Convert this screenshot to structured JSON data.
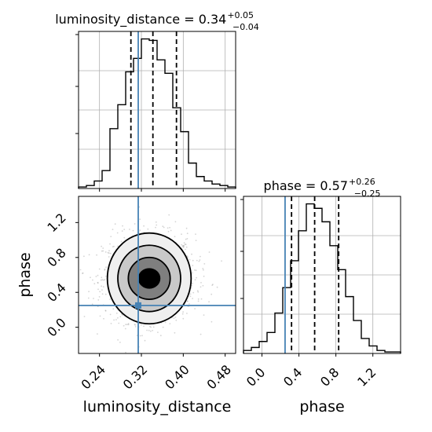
{
  "chart_data": {
    "type": "corner",
    "params": [
      "luminosity_distance",
      "phase"
    ],
    "truths": {
      "luminosity_distance": 0.314,
      "phase": 0.25
    },
    "titles": {
      "luminosity_distance": {
        "prefix": "luminosity_distance = ",
        "median": "0.34",
        "plus": "+0.05",
        "minus": "−0.04"
      },
      "phase": {
        "prefix": "phase = ",
        "median": "0.57",
        "plus": "+0.26",
        "minus": "−0.25"
      }
    },
    "quantiles": {
      "luminosity_distance": [
        0.3,
        0.342,
        0.387
      ],
      "phase": [
        0.32,
        0.57,
        0.83
      ]
    },
    "hist_luminosity_distance": {
      "xlim": [
        0.2,
        0.5
      ],
      "ylim": [
        0,
        1.0
      ],
      "grid": true,
      "bins": [
        0.2,
        0.215,
        0.23,
        0.245,
        0.26,
        0.275,
        0.29,
        0.305,
        0.32,
        0.335,
        0.35,
        0.365,
        0.38,
        0.395,
        0.41,
        0.425,
        0.44,
        0.455,
        0.47,
        0.485,
        0.5
      ],
      "heights": [
        0.01,
        0.02,
        0.05,
        0.12,
        0.4,
        0.56,
        0.78,
        0.87,
        1.0,
        0.99,
        0.86,
        0.77,
        0.54,
        0.38,
        0.17,
        0.08,
        0.05,
        0.03,
        0.02,
        0.01
      ]
    },
    "hist_phase": {
      "xlim": [
        -0.2,
        1.5
      ],
      "ylim": [
        0,
        1.0
      ],
      "grid": true,
      "bins": [
        -0.2,
        -0.115,
        -0.03,
        0.055,
        0.14,
        0.225,
        0.31,
        0.395,
        0.48,
        0.565,
        0.65,
        0.735,
        0.82,
        0.905,
        0.99,
        1.075,
        1.16,
        1.245,
        1.33,
        1.415,
        1.5
      ],
      "heights": [
        0.02,
        0.04,
        0.08,
        0.14,
        0.27,
        0.44,
        0.62,
        0.82,
        1.0,
        0.97,
        0.88,
        0.72,
        0.56,
        0.38,
        0.22,
        0.1,
        0.05,
        0.02,
        0.01,
        0.01
      ]
    },
    "scatter2d": {
      "xlim": [
        0.2,
        0.5
      ],
      "ylim": [
        -0.3,
        1.5
      ],
      "center": [
        0.335,
        0.56
      ],
      "spread": [
        0.035,
        0.2
      ],
      "contours": [
        {
          "rx": 0.02,
          "ry": 0.11,
          "fill": "#000000"
        },
        {
          "rx": 0.04,
          "ry": 0.24,
          "fill": "#7f7f7f"
        },
        {
          "rx": 0.06,
          "ry": 0.38,
          "fill": "#c9c9c9"
        },
        {
          "rx": 0.08,
          "ry": 0.52,
          "fill": "#efefef"
        }
      ]
    },
    "ticks": {
      "luminosity_distance": [
        {
          "v": 0.24,
          "label": "0.24"
        },
        {
          "v": 0.32,
          "label": "0.32"
        },
        {
          "v": 0.4,
          "label": "0.40"
        },
        {
          "v": 0.48,
          "label": "0.48"
        }
      ],
      "phase": [
        {
          "v": 0.0,
          "label": "0.0"
        },
        {
          "v": 0.4,
          "label": "0.4"
        },
        {
          "v": 0.8,
          "label": "0.8"
        },
        {
          "v": 1.2,
          "label": "1.2"
        }
      ]
    },
    "xlabels": {
      "left": "luminosity_distance",
      "right": "phase"
    },
    "ylabel": "phase",
    "colors": {
      "truth": "#4682b4",
      "line": "#000000",
      "grid": "#b0b0b0",
      "points": "#888888"
    }
  }
}
